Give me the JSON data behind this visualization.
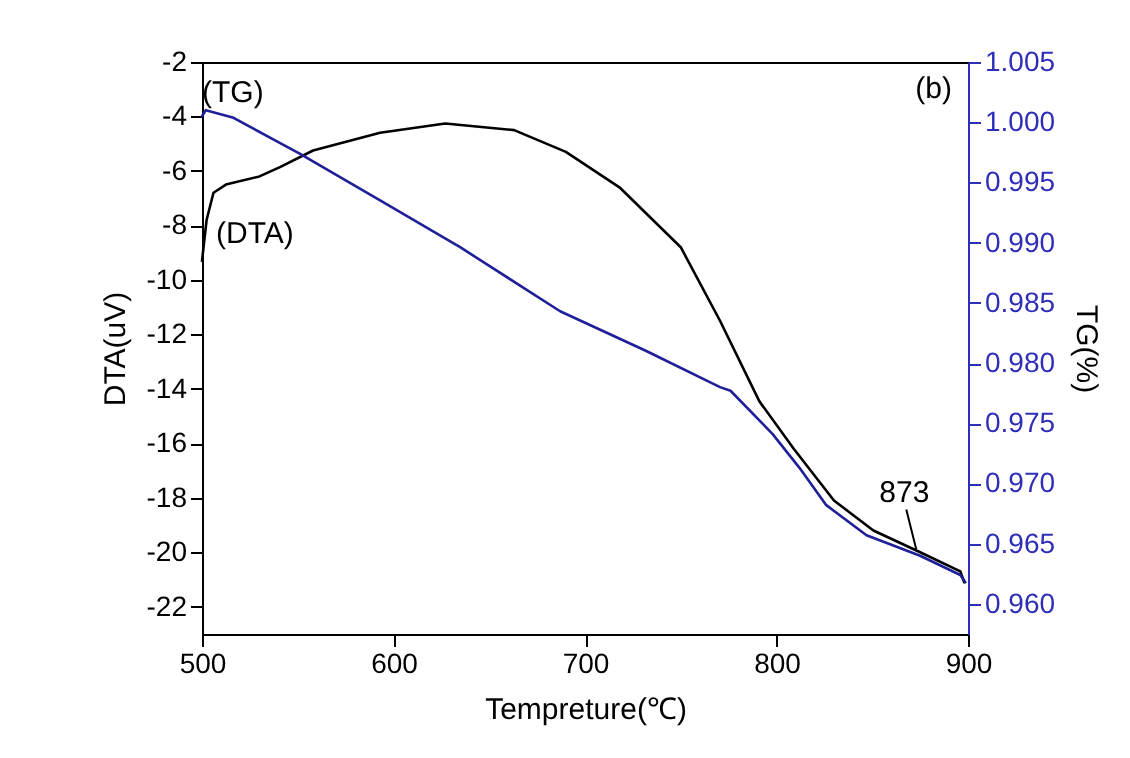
{
  "chart_data": {
    "type": "line",
    "xlabel": "Tempreture(℃)",
    "ylabel": "DTA(uV)",
    "y2label": "TG(%)",
    "xlim": [
      500,
      900
    ],
    "xticks": [
      500,
      600,
      700,
      800,
      900
    ],
    "ylim": [
      -23,
      -2
    ],
    "yticks": [
      -22,
      -20,
      -18,
      -16,
      -14,
      -12,
      -10,
      -8,
      -6,
      -4,
      -2
    ],
    "y2lim": [
      0.9575,
      1.005
    ],
    "y2ticks": [
      {
        "value": 0.96,
        "label": "0.960"
      },
      0.965,
      {
        "value": 0.97,
        "label": "0.970"
      },
      0.975,
      {
        "value": 0.98,
        "label": "0.980"
      },
      0.985,
      {
        "value": 0.99,
        "label": "0.990"
      },
      0.995,
      {
        "value": 1.0,
        "label": "1.000"
      },
      1.005
    ],
    "grid": false,
    "line_style": "solid",
    "marker": "none",
    "series": [
      {
        "name": "(DTA)",
        "color": "#000000",
        "x": [
          500,
          502.4,
          506,
          512.5,
          530,
          541,
          558,
          593,
          627,
          663,
          690,
          718,
          750,
          770.5,
          791,
          809,
          830,
          850.6,
          875,
          896,
          898
        ],
        "values": [
          -9.3,
          -7.8,
          -6.8,
          -6.5,
          -6.2,
          -5.85,
          -5.25,
          -4.6,
          -4.26,
          -4.5,
          -5.3,
          -6.6,
          -8.8,
          -11.5,
          -14.45,
          -16.2,
          -18.1,
          -19.2,
          -20.0,
          -20.7,
          -21.1
        ]
      },
      {
        "name": "(TG)",
        "color": "#1f1f99",
        "axis": "y2",
        "x": [
          500,
          502,
          516,
          551,
          593,
          635,
          687,
          732,
          770.5,
          776,
          798,
          812,
          826,
          847,
          875,
          896,
          898.6
        ],
        "values": [
          1.0005,
          1.001,
          1.0004,
          0.9974,
          0.9935,
          0.9896,
          0.9843,
          0.981,
          0.978,
          0.9777,
          0.9741,
          0.9713,
          0.9682,
          0.9657,
          0.964,
          0.9624,
          0.9618
        ]
      }
    ],
    "annotations": [
      "(b)",
      {
        "text": "873",
        "x": 873,
        "y": -19.9
      }
    ]
  }
}
